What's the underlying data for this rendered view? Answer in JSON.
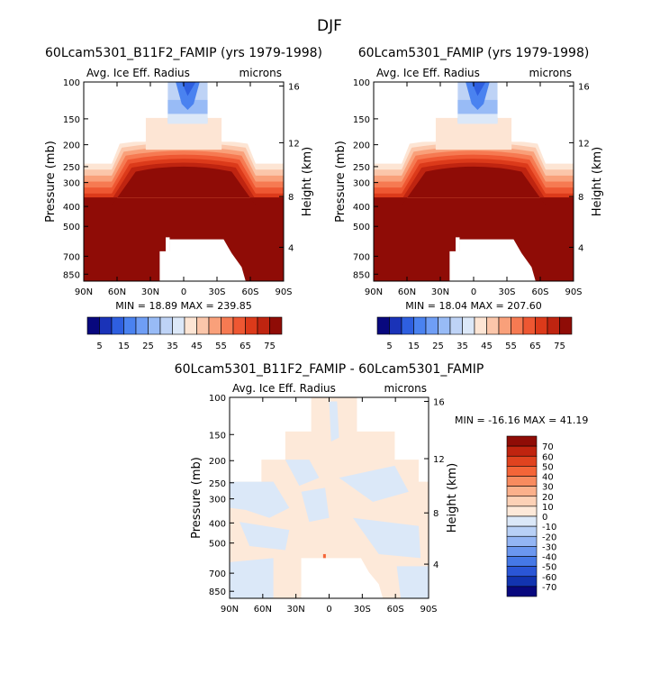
{
  "figure_title": "DJF",
  "chart_data": [
    {
      "type": "heatmap",
      "id": "p1",
      "title": "60Lcam5301_B11F2_FAMIP (yrs 1979-1998)",
      "subtitle_left": "Avg. Ice Eff. Radius",
      "subtitle_right": "microns",
      "xlabel": "",
      "ylabel": "Pressure (mb)",
      "ylabel_right": "Height (km)",
      "x_ticks": [
        "90N",
        "60N",
        "30N",
        "0",
        "30S",
        "60S",
        "90S"
      ],
      "y_ticks": [
        "100",
        "150",
        "200",
        "250",
        "300",
        "400",
        "500",
        "700",
        "850"
      ],
      "y_ticks_right": [
        "16",
        "12",
        "8",
        "4"
      ],
      "ylim": [
        1000,
        100
      ],
      "stats_text": "MIN =  18.89   MAX = 239.85",
      "min": 18.89,
      "max": 239.85,
      "colorbar_orientation": "horizontal",
      "colorbar_labels": [
        "5",
        "15",
        "25",
        "35",
        "45",
        "55",
        "65",
        "75"
      ]
    },
    {
      "type": "heatmap",
      "id": "p2",
      "title": "60Lcam5301_FAMIP (yrs 1979-1998)",
      "subtitle_left": "Avg. Ice Eff. Radius",
      "subtitle_right": "microns",
      "xlabel": "",
      "ylabel": "Pressure (mb)",
      "ylabel_right": "Height (km)",
      "x_ticks": [
        "90N",
        "60N",
        "30N",
        "0",
        "30S",
        "60S",
        "90S"
      ],
      "y_ticks": [
        "100",
        "150",
        "200",
        "250",
        "300",
        "400",
        "500",
        "700",
        "850"
      ],
      "y_ticks_right": [
        "16",
        "12",
        "8",
        "4"
      ],
      "ylim": [
        1000,
        100
      ],
      "stats_text": "MIN =  18.04   MAX = 207.60",
      "min": 18.04,
      "max": 207.6,
      "colorbar_orientation": "horizontal",
      "colorbar_labels": [
        "5",
        "15",
        "25",
        "35",
        "45",
        "55",
        "65",
        "75"
      ]
    },
    {
      "type": "heatmap",
      "id": "p3",
      "title": "60Lcam5301_B11F2_FAMIP - 60Lcam5301_FAMIP",
      "subtitle_left": "Avg. Ice Eff. Radius",
      "subtitle_right": "microns",
      "xlabel": "",
      "ylabel": "Pressure (mb)",
      "ylabel_right": "Height (km)",
      "x_ticks": [
        "90N",
        "60N",
        "30N",
        "0",
        "30S",
        "60S",
        "90S"
      ],
      "y_ticks": [
        "100",
        "150",
        "200",
        "250",
        "300",
        "400",
        "500",
        "700",
        "850"
      ],
      "y_ticks_right": [
        "16",
        "12",
        "8",
        "4"
      ],
      "ylim": [
        1000,
        100
      ],
      "stats_text": "MIN = -16.16   MAX =  41.19",
      "min": -16.16,
      "max": 41.19,
      "colorbar_orientation": "vertical",
      "colorbar_labels": [
        "70",
        "60",
        "50",
        "40",
        "30",
        "20",
        "10",
        "0",
        "-10",
        "-20",
        "-30",
        "-40",
        "-50",
        "-60",
        "-70"
      ]
    }
  ],
  "palette": {
    "abs_levels": [
      "#08087e",
      "#1a33b8",
      "#2e5fe0",
      "#4a82f0",
      "#6f9ef5",
      "#98bbf6",
      "#bed3f6",
      "#dce8f8",
      "#fde5d4",
      "#fbc6aa",
      "#f9a07a",
      "#f67a52",
      "#ee5732",
      "#dc3a1a",
      "#bf2410",
      "#8f0c06"
    ],
    "diff_levels": [
      "#8f0c06",
      "#c0240f",
      "#e0431f",
      "#f46538",
      "#f88b5f",
      "#fbb08b",
      "#fcd1b6",
      "#fde9d9",
      "#dbe8f8",
      "#b8d0f6",
      "#93b5f4",
      "#6b97ef",
      "#4578e6",
      "#2a56d6",
      "#1234b0",
      "#08087e"
    ],
    "diff_main": "#fde9d9",
    "diff_neg": "#dbe8f8"
  }
}
